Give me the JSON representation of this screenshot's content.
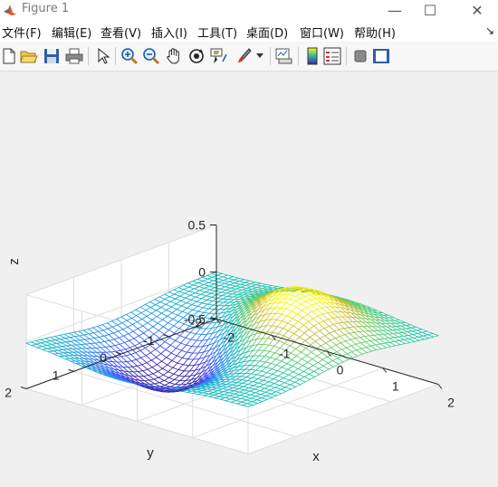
{
  "window": {
    "title": "Figure 1",
    "minimize_glyph": "—",
    "maximize_glyph": "☐",
    "close_glyph": "✕"
  },
  "menu": {
    "items": [
      "文件(F)",
      "编辑(E)",
      "查看(V)",
      "插入(I)",
      "工具(T)",
      "桌面(D)",
      "窗口(W)",
      "帮助(H)"
    ],
    "overflow_glyph": "↘"
  },
  "toolbar": {
    "icons": [
      "new-figure-icon",
      "open-file-icon",
      "save-icon",
      "print-icon",
      "select-arrow-icon",
      "zoom-in-icon",
      "zoom-out-icon",
      "pan-hand-icon",
      "rotate-3d-icon",
      "data-cursor-icon",
      "brush-icon",
      "link-plot-icon",
      "insert-colorbar-icon",
      "insert-legend-icon",
      "hide-plot-tools-icon",
      "show-plot-tools-icon"
    ]
  },
  "chart_data": {
    "type": "surface",
    "function": "x*exp(-x^2-y^2) style surface (peak at (-0.71,-0.71)=0.43, trough at (0.71,0.71)=-0.43)",
    "x": [
      -2,
      2
    ],
    "y": [
      -2,
      2
    ],
    "grid_steps": 40,
    "zlim": [
      -0.5,
      0.5
    ],
    "xticks": [
      "-2",
      "-1",
      "0",
      "1",
      "2"
    ],
    "yticks": [
      "-2",
      "-1",
      "0",
      "1",
      "2"
    ],
    "zticks": [
      "-0.5",
      "0",
      "0.5"
    ],
    "xlabel": "x",
    "ylabel": "y",
    "zlabel": "z",
    "colormap": "parula",
    "style": "mesh",
    "grid": true
  }
}
